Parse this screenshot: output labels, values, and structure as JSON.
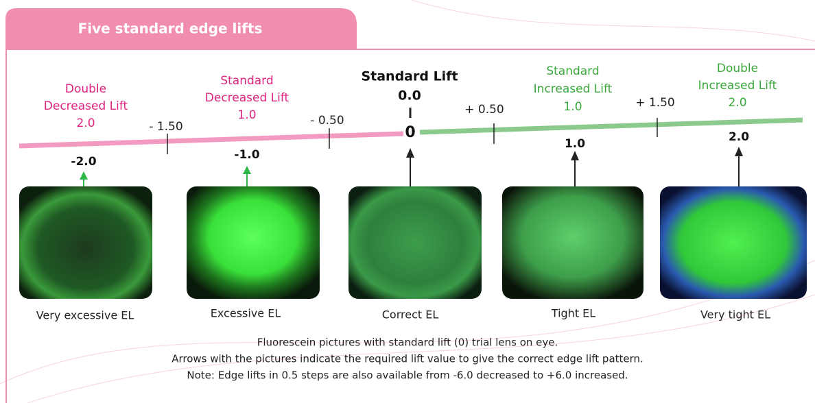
{
  "header": {
    "title": "Five standard edge lifts"
  },
  "scale_steps": [
    "- 1.50",
    "- 0.50",
    "+ 0.50",
    "+ 1.50"
  ],
  "lifts": [
    {
      "name": [
        "Double",
        "Decreased Lift"
      ],
      "amount": "2.0",
      "position": "-2.0"
    },
    {
      "name": [
        "Standard",
        "Decreased Lift"
      ],
      "amount": "1.0",
      "position": "-1.0"
    },
    {
      "name": [
        "Standard Lift"
      ],
      "amount": "0.0",
      "position": "0"
    },
    {
      "name": [
        "Standard",
        "Increased Lift"
      ],
      "amount": "1.0",
      "position": "1.0"
    },
    {
      "name": [
        "Double",
        "Increased Lift"
      ],
      "amount": "2.0",
      "position": "2.0"
    }
  ],
  "pictures": [
    {
      "caption": "Very excessive EL"
    },
    {
      "caption": "Excessive EL"
    },
    {
      "caption": "Correct EL"
    },
    {
      "caption": "Tight EL"
    },
    {
      "caption": "Very tight EL"
    }
  ],
  "notes": [
    "Fluorescein pictures with standard lift (0) trial lens on eye.",
    "Arrows with the pictures indicate the required lift value to give the correct edge lift pattern.",
    "Note: Edge lifts in 0.5 steps are also available from -6.0 decreased to +6.0 increased."
  ]
}
